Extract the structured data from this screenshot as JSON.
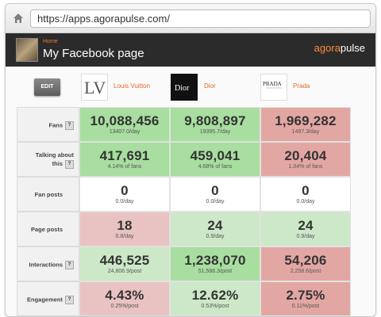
{
  "browser": {
    "url": "https://apps.agorapulse.com/"
  },
  "header": {
    "breadcrumb": "Home",
    "title": "My Facebook page",
    "brand_a": "agora",
    "brand_b": "pulse"
  },
  "toolbar": {
    "edit_label": "EDIT"
  },
  "brands": [
    {
      "name": "Louis Vuitton",
      "logo_text": "LV"
    },
    {
      "name": "Dior",
      "logo_text": "Dior"
    },
    {
      "name": "Prada",
      "logo_text": "PRADA"
    }
  ],
  "metrics": [
    {
      "label": "Fans",
      "help": "?",
      "cells": [
        {
          "value": "10,088,456",
          "sub": "13407.0/day",
          "tone": "g1"
        },
        {
          "value": "9,808,897",
          "sub": "19395.7/day",
          "tone": "g1"
        },
        {
          "value": "1,969,282",
          "sub": "1497.3/day",
          "tone": "r1"
        }
      ]
    },
    {
      "label": "Talking about this",
      "help": "?",
      "cells": [
        {
          "value": "417,691",
          "sub": "4.14% of fans",
          "tone": "g1"
        },
        {
          "value": "459,041",
          "sub": "4.68% of fans",
          "tone": "g1"
        },
        {
          "value": "20,404",
          "sub": "1.04% of fans",
          "tone": "r1"
        }
      ]
    },
    {
      "label": "Fan posts",
      "help": "",
      "cells": [
        {
          "value": "0",
          "sub": "0.0/day",
          "tone": "w"
        },
        {
          "value": "0",
          "sub": "0.0/day",
          "tone": "w"
        },
        {
          "value": "0",
          "sub": "0.0/day",
          "tone": "w"
        }
      ]
    },
    {
      "label": "Page posts",
      "help": "",
      "cells": [
        {
          "value": "18",
          "sub": "0.8/day",
          "tone": "r2"
        },
        {
          "value": "24",
          "sub": "0.9/day",
          "tone": "g2"
        },
        {
          "value": "24",
          "sub": "0.9/day",
          "tone": "g2"
        }
      ]
    },
    {
      "label": "Interactions",
      "help": "?",
      "cells": [
        {
          "value": "446,525",
          "sub": "24,806.9/post",
          "tone": "g2"
        },
        {
          "value": "1,238,070",
          "sub": "51,586.3/post",
          "tone": "g1"
        },
        {
          "value": "54,206",
          "sub": "2,258.6/post",
          "tone": "r1"
        }
      ]
    },
    {
      "label": "Engagement",
      "help": "?",
      "cells": [
        {
          "value": "4.43%",
          "sub": "0.25%/post",
          "tone": "r2"
        },
        {
          "value": "12.62%",
          "sub": "0.53%/post",
          "tone": "g2"
        },
        {
          "value": "2.75%",
          "sub": "0.11%/post",
          "tone": "r1"
        }
      ]
    }
  ]
}
